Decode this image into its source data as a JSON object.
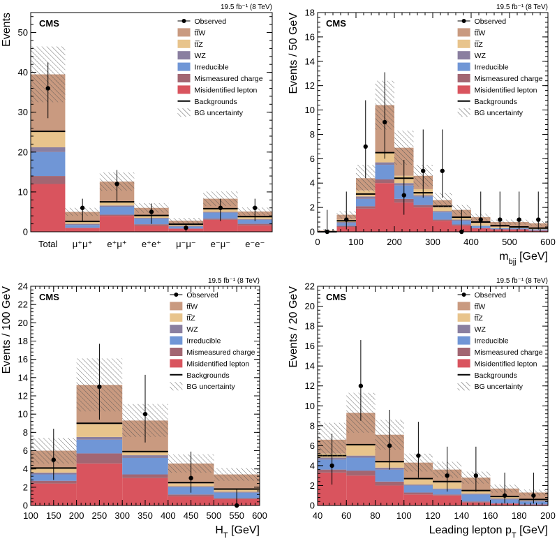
{
  "legend": [
    {
      "key": "observed",
      "label": "Observed",
      "kind": "marker"
    },
    {
      "key": "ttw",
      "label": "tt̅W",
      "kind": "box"
    },
    {
      "key": "ttz",
      "label": "tt̅Z",
      "kind": "box"
    },
    {
      "key": "wz",
      "label": "WZ",
      "kind": "box"
    },
    {
      "key": "irr",
      "label": "Irreducible",
      "kind": "box"
    },
    {
      "key": "mis",
      "label": "Mismeasured charge",
      "kind": "box"
    },
    {
      "key": "fake",
      "label": "Misidentified lepton",
      "kind": "box"
    },
    {
      "key": "bkg",
      "label": "Backgrounds",
      "kind": "line"
    },
    {
      "key": "unc",
      "label": "BG uncertainty",
      "kind": "hatch"
    }
  ],
  "colors": {
    "ttw": "#c99a80",
    "ttz": "#e8c48c",
    "wz": "#8a7fa0",
    "irr": "#7096d6",
    "mis": "#a26672",
    "fake": "#d9545e",
    "hatch": "#555555"
  },
  "experiment_label": "CMS",
  "lumi_label": "19.5 fb⁻¹ (8 TeV)",
  "chart_data": [
    {
      "id": "channels",
      "type": "bar",
      "title": "",
      "xlabel": "",
      "ylabel": "Events",
      "ylim": [
        0,
        55
      ],
      "yticks": [
        0,
        10,
        20,
        30,
        40,
        50
      ],
      "categories": [
        "Total",
        "μ⁺μ⁺",
        "e⁺μ⁺",
        "e⁺e⁺",
        "μ⁻μ⁻",
        "e⁻μ⁻",
        "e⁻e⁻"
      ],
      "stacks": {
        "fake": [
          12.0,
          1.0,
          4.0,
          1.5,
          0.8,
          3.0,
          1.6
        ],
        "mis": [
          2.0,
          0.0,
          0.3,
          0.4,
          0.0,
          0.3,
          0.4
        ],
        "irr": [
          6.0,
          0.7,
          2.0,
          1.4,
          0.5,
          1.5,
          1.0
        ],
        "wz": [
          1.2,
          0.3,
          0.3,
          0.2,
          0.2,
          0.2,
          0.2
        ],
        "ttz": [
          4.0,
          0.6,
          0.9,
          0.6,
          0.4,
          0.8,
          0.6
        ],
        "ttw": [
          14.3,
          2.4,
          5.1,
          1.9,
          0.9,
          2.5,
          1.3
        ]
      },
      "total_bkg": [
        25.2,
        2.6,
        7.5,
        4.1,
        1.9,
        5.8,
        3.8
      ],
      "unc": [
        7.0,
        1.0,
        2.3,
        1.2,
        0.7,
        1.8,
        1.0
      ],
      "observed": [
        36,
        6,
        12,
        5,
        1,
        6,
        6
      ],
      "obs_err": [
        [
          7.5,
          6.5
        ],
        [
          3.3,
          2.3
        ],
        [
          4.5,
          3.5
        ],
        [
          3.0,
          2.1
        ],
        [
          2.3,
          0.8
        ],
        [
          3.3,
          2.3
        ],
        [
          3.3,
          2.3
        ]
      ]
    },
    {
      "id": "mbjj",
      "type": "bar",
      "title": "",
      "xlabel": "m_bjj [GeV]",
      "ylabel": "Events / 50 GeV",
      "xlim": [
        0,
        600
      ],
      "ylim": [
        0,
        18
      ],
      "xticks": [
        0,
        100,
        200,
        300,
        400,
        500,
        600
      ],
      "yticks": [
        0,
        2,
        4,
        6,
        8,
        10,
        12,
        14,
        16,
        18
      ],
      "bin_edges": [
        0,
        50,
        100,
        150,
        200,
        250,
        300,
        350,
        400,
        450,
        500,
        550,
        600
      ],
      "stacks": {
        "fake": [
          0.0,
          0.4,
          1.9,
          4.0,
          2.4,
          2.0,
          0.9,
          0.5,
          0.3,
          0.2,
          0.2,
          0.1
        ],
        "mis": [
          0.0,
          0.1,
          0.2,
          0.3,
          0.3,
          0.2,
          0.1,
          0.1,
          0.0,
          0.0,
          0.0,
          0.0
        ],
        "irr": [
          0.0,
          0.2,
          0.6,
          1.2,
          1.1,
          0.7,
          0.6,
          0.3,
          0.2,
          0.1,
          0.1,
          0.1
        ],
        "wz": [
          0.0,
          0.1,
          0.2,
          0.2,
          0.2,
          0.1,
          0.1,
          0.1,
          0.0,
          0.0,
          0.0,
          0.0
        ],
        "ttz": [
          0.0,
          0.2,
          0.5,
          0.8,
          0.6,
          0.5,
          0.3,
          0.2,
          0.2,
          0.1,
          0.1,
          0.1
        ],
        "ttw": [
          0.1,
          0.4,
          1.0,
          3.9,
          2.3,
          1.1,
          0.6,
          0.6,
          0.5,
          0.4,
          0.4,
          0.4
        ]
      },
      "total_bkg": [
        0.0,
        0.9,
        3.1,
        6.5,
        4.4,
        3.2,
        2.1,
        1.2,
        0.8,
        0.5,
        0.4,
        0.3
      ],
      "unc": [
        0.1,
        0.3,
        1.1,
        2.0,
        1.4,
        0.9,
        0.6,
        0.4,
        0.3,
        0.2,
        0.2,
        0.2
      ],
      "observed": [
        0,
        1,
        7,
        9,
        3,
        5,
        5,
        0,
        1,
        1,
        1,
        1
      ],
      "obs_err": [
        [
          0,
          1.8
        ],
        [
          0.8,
          2.3
        ],
        [
          2.6,
          3.8
        ],
        [
          3.0,
          4.1
        ],
        [
          1.6,
          2.9
        ],
        [
          2.2,
          3.4
        ],
        [
          2.2,
          3.4
        ],
        [
          0,
          1.8
        ],
        [
          0.8,
          2.3
        ],
        [
          0.8,
          2.3
        ],
        [
          0.8,
          2.3
        ],
        [
          0.8,
          2.3
        ]
      ]
    },
    {
      "id": "ht",
      "type": "bar",
      "title": "",
      "xlabel": "H_T [GeV]",
      "ylabel": "Events / 100 GeV",
      "xlim": [
        100,
        600
      ],
      "ylim": [
        0,
        24
      ],
      "xticks": [
        100,
        150,
        200,
        250,
        300,
        350,
        400,
        450,
        500,
        550,
        600
      ],
      "yticks": [
        0,
        2,
        4,
        6,
        8,
        10,
        12,
        14,
        16,
        18,
        20,
        22,
        24
      ],
      "bin_edges": [
        100,
        200,
        300,
        400,
        500,
        600
      ],
      "stacks": {
        "fake": [
          2.4,
          4.6,
          3.0,
          1.0,
          0.7
        ],
        "mis": [
          0.3,
          1.1,
          0.4,
          0.2,
          0.1
        ],
        "irr": [
          0.7,
          1.5,
          1.8,
          0.8,
          0.6
        ],
        "wz": [
          0.2,
          0.3,
          0.3,
          0.1,
          0.1
        ],
        "ttz": [
          0.5,
          1.4,
          0.5,
          0.3,
          0.3
        ],
        "ttw": [
          1.9,
          4.3,
          3.3,
          2.2,
          1.6
        ]
      },
      "total_bkg": [
        4.1,
        9.0,
        5.9,
        2.5,
        1.8
      ],
      "unc": [
        1.4,
        2.9,
        1.8,
        1.0,
        0.7
      ],
      "observed": [
        5,
        13,
        10,
        3,
        0
      ],
      "obs_err": [
        [
          2.2,
          3.4
        ],
        [
          3.6,
          4.7
        ],
        [
          3.1,
          4.3
        ],
        [
          1.6,
          2.9
        ],
        [
          0,
          1.8
        ]
      ]
    },
    {
      "id": "ptlead",
      "type": "bar",
      "title": "",
      "xlabel": "Leading lepton p_T [GeV]",
      "ylabel": "Events / 20 GeV",
      "xlim": [
        40,
        200
      ],
      "ylim": [
        0,
        22
      ],
      "xticks": [
        40,
        60,
        80,
        100,
        120,
        140,
        160,
        180,
        200
      ],
      "yticks": [
        0,
        2,
        4,
        6,
        8,
        10,
        12,
        14,
        16,
        18,
        20,
        22
      ],
      "bin_edges": [
        40,
        60,
        80,
        100,
        120,
        140,
        160,
        180,
        200
      ],
      "stacks": {
        "fake": [
          3.3,
          3.0,
          2.0,
          1.1,
          1.0,
          0.3,
          0.2,
          0.1
        ],
        "mis": [
          0.3,
          0.5,
          0.4,
          0.2,
          0.1,
          0.1,
          0.0,
          0.0
        ],
        "irr": [
          1.0,
          1.3,
          1.2,
          0.7,
          0.5,
          0.7,
          0.4,
          0.3
        ],
        "wz": [
          0.2,
          0.2,
          0.2,
          0.1,
          0.1,
          0.1,
          0.1,
          0.1
        ],
        "ttz": [
          0.4,
          1.1,
          0.6,
          0.6,
          0.6,
          0.3,
          0.2,
          0.1
        ],
        "ttw": [
          1.4,
          3.2,
          2.7,
          1.6,
          1.3,
          1.3,
          0.8,
          0.7
        ]
      },
      "total_bkg": [
        5.0,
        6.1,
        4.4,
        2.7,
        2.4,
        1.5,
        0.9,
        0.6
      ],
      "unc": [
        1.7,
        2.0,
        1.5,
        0.9,
        0.8,
        0.6,
        0.4,
        0.3
      ],
      "observed": [
        4,
        12,
        6,
        5,
        3,
        3,
        1,
        1
      ],
      "obs_err": [
        [
          1.9,
          3.2
        ],
        [
          3.5,
          4.6
        ],
        [
          2.4,
          3.6
        ],
        [
          2.2,
          3.4
        ],
        [
          1.6,
          2.9
        ],
        [
          1.6,
          2.9
        ],
        [
          0.8,
          2.3
        ],
        [
          0.8,
          2.3
        ]
      ]
    }
  ]
}
